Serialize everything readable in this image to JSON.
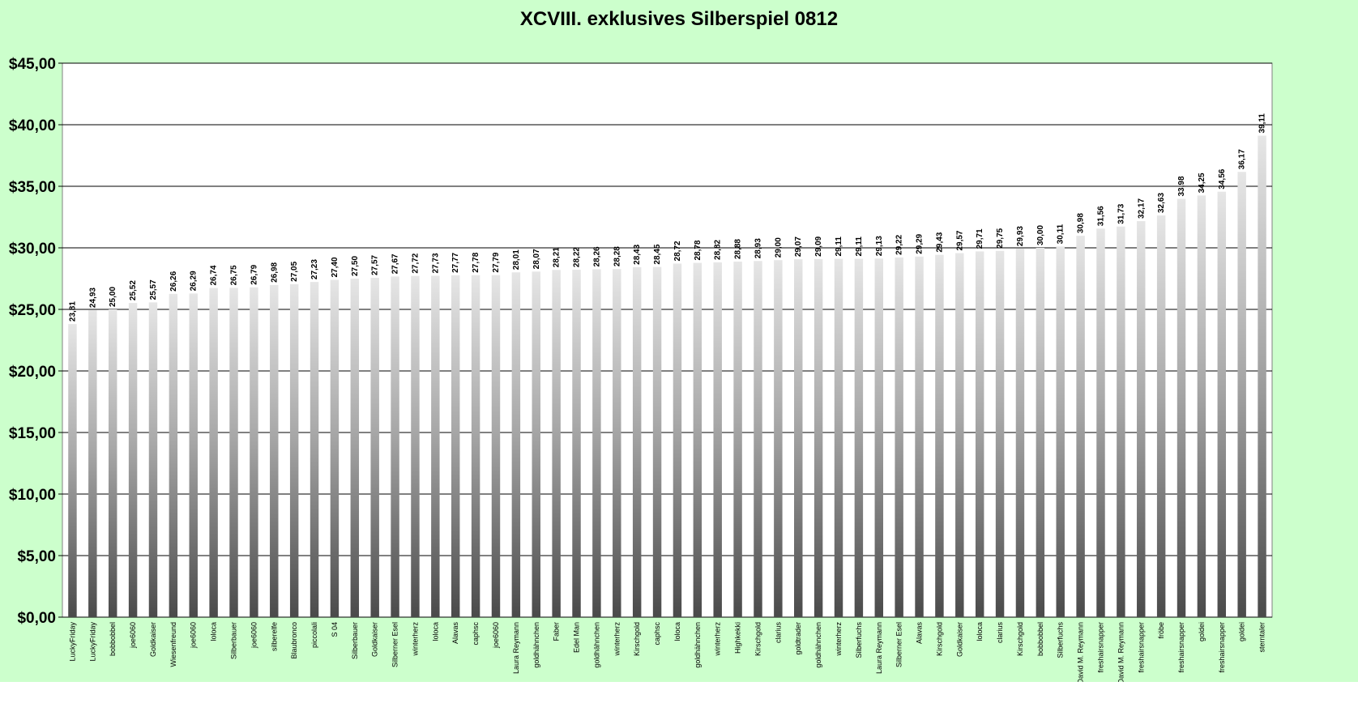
{
  "chart_data": {
    "type": "bar",
    "title": "XCVIII. exklusives Silberspiel 0812",
    "xlabel": "",
    "ylabel": "",
    "ylim": [
      0,
      45
    ],
    "y_ticks": [
      "$0,00",
      "$5,00",
      "$10,00",
      "$15,00",
      "$20,00",
      "$25,00",
      "$30,00",
      "$35,00",
      "$40,00",
      "$45,00"
    ],
    "grid": true,
    "legend": "none",
    "colors": {
      "plot_background": "#ffffff",
      "page_background": "#ccffcc",
      "bar_light": "#e0e0e0",
      "bar_dark": "#555555",
      "gridline": "#000000"
    },
    "categories": [
      "LuckyFriday",
      "LuckyFriday",
      "bobbobbel",
      "joe6060",
      "Goldkaiser",
      "Wiesenfreund",
      "joe6060",
      "loloca",
      "Silberbauer",
      "joe6060",
      "silberelfe",
      "Blaubronco",
      "piccolali",
      "S 04",
      "Silberbauer",
      "Goldkaiser",
      "Silberner Esel",
      "winterherz",
      "loloca",
      "Alavas",
      "caphsc",
      "joe6060",
      "Laura Reymann",
      "goldhähnchen",
      "Faber",
      "Edel Man",
      "goldhähnchen",
      "winterherz",
      "Kirschgold",
      "caphsc",
      "loloca",
      "goldhähnchen",
      "winterherz",
      "Highkekki",
      "Kirschgold",
      "clarius",
      "goldtrader",
      "goldhähnchen",
      "winterherz",
      "Silberfuchs",
      "Laura Reymann",
      "Silberner Esel",
      "Alavas",
      "Kirschgold",
      "Goldkaiser",
      "loloca",
      "clarius",
      "Kirschgold",
      "bobbobbel",
      "Silberfuchs",
      "David M. Reymann",
      "freshairsnapper",
      "David M. Reymann",
      "freshairsnapper",
      "fröbe",
      "freshairsnapper",
      "goldei",
      "freshairsnapper",
      "goldei",
      "sterntaler"
    ],
    "values": [
      23.81,
      24.93,
      25.0,
      25.52,
      25.57,
      26.26,
      26.29,
      26.74,
      26.75,
      26.79,
      26.98,
      27.05,
      27.23,
      27.4,
      27.5,
      27.57,
      27.67,
      27.72,
      27.73,
      27.77,
      27.78,
      27.79,
      28.01,
      28.07,
      28.21,
      28.22,
      28.26,
      28.28,
      28.43,
      28.45,
      28.72,
      28.78,
      28.82,
      28.88,
      28.93,
      29.0,
      29.07,
      29.09,
      29.11,
      29.11,
      29.13,
      29.22,
      29.29,
      29.43,
      29.57,
      29.71,
      29.75,
      29.93,
      30.0,
      30.11,
      30.98,
      31.56,
      31.73,
      32.17,
      32.63,
      33.98,
      34.25,
      34.56,
      36.17,
      39.11
    ],
    "value_labels": [
      "23,81",
      "24,93",
      "25,00",
      "25,52",
      "25,57",
      "26,26",
      "26,29",
      "26,74",
      "26,75",
      "26,79",
      "26,98",
      "27,05",
      "27,23",
      "27,40",
      "27,50",
      "27,57",
      "27,67",
      "27,72",
      "27,73",
      "27,77",
      "27,78",
      "27,79",
      "28,01",
      "28,07",
      "28,21",
      "28,22",
      "28,26",
      "28,28",
      "28,43",
      "28,45",
      "28,72",
      "28,78",
      "28,82",
      "28,88",
      "28,93",
      "29,00",
      "29,07",
      "29,09",
      "29,11",
      "29,11",
      "29,13",
      "29,22",
      "29,29",
      "29,43",
      "29,57",
      "29,71",
      "29,75",
      "29,93",
      "30,00",
      "30,11",
      "30,98",
      "31,56",
      "31,73",
      "32,17",
      "32,63",
      "33,98",
      "34,25",
      "34,56",
      "36,17",
      "39,11"
    ]
  }
}
